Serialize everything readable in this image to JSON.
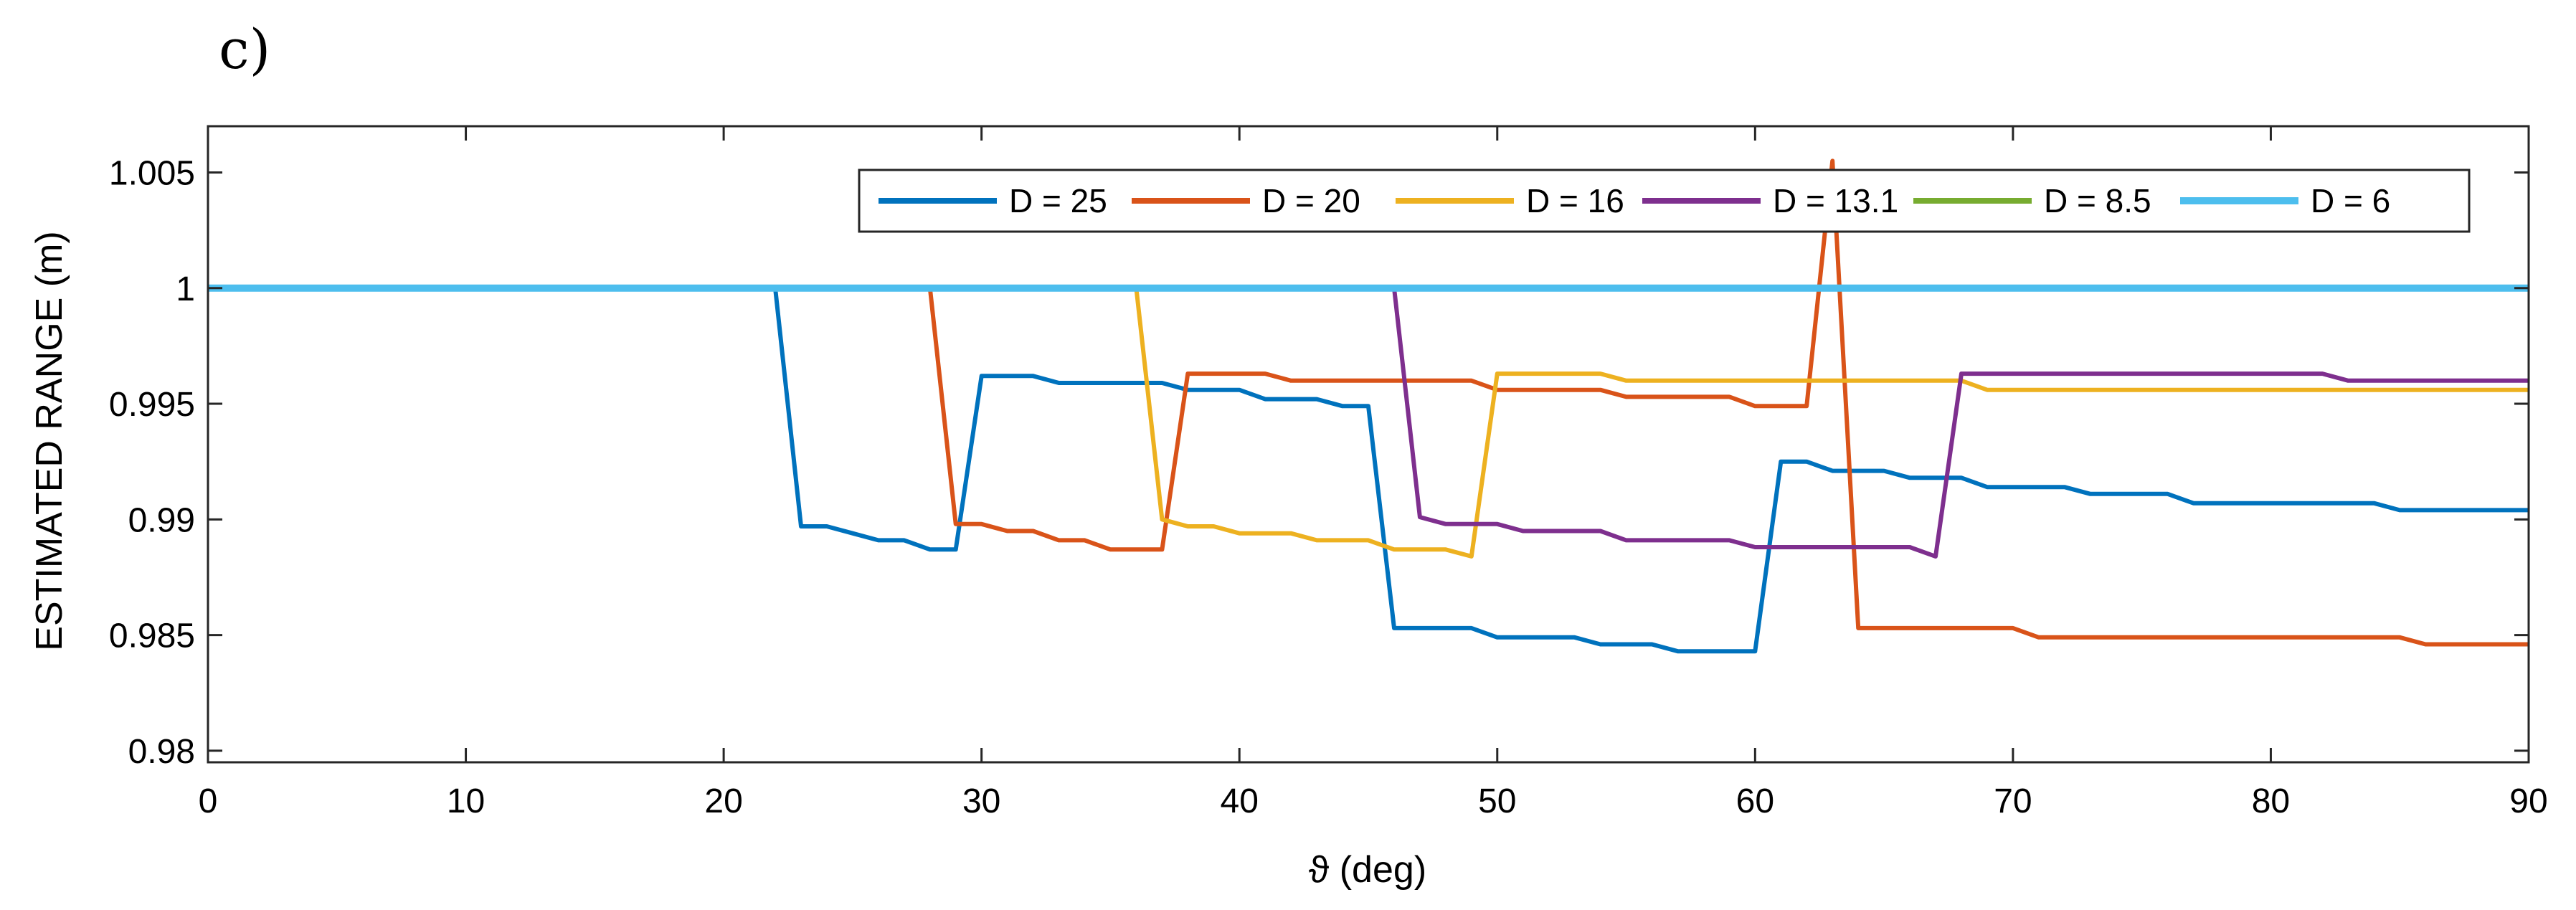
{
  "panel_label": "c)",
  "chart_data": {
    "type": "line",
    "title": "",
    "xlabel": "ϑ (deg)",
    "ylabel": "ESTIMATED RANGE (m)",
    "xlim": [
      0,
      90
    ],
    "ylim": [
      0.9795,
      1.007
    ],
    "xticks": [
      0,
      10,
      20,
      30,
      40,
      50,
      60,
      70,
      80,
      90
    ],
    "xtick_labels": [
      "0",
      "10",
      "20",
      "30",
      "40",
      "50",
      "60",
      "70",
      "80",
      "90"
    ],
    "yticks": [
      0.98,
      0.985,
      0.99,
      0.995,
      1,
      1.005
    ],
    "ytick_labels": [
      "0.98",
      "0.985",
      "0.99",
      "0.995",
      "1",
      "1.005"
    ],
    "grid": false,
    "legend_position": "top-right",
    "series": [
      {
        "name": "D = 25",
        "legend_label": "D = 25",
        "color": "#0072BD",
        "x": [
          0,
          22,
          23,
          24,
          25,
          26,
          27,
          28,
          29,
          30,
          31,
          32,
          33,
          34,
          35,
          36,
          37,
          38,
          39,
          40,
          41,
          42,
          43,
          44,
          45,
          46,
          47,
          48,
          49,
          50,
          51,
          52,
          53,
          54,
          55,
          56,
          57,
          58,
          59,
          60,
          61,
          62,
          63,
          64,
          65,
          66,
          67,
          68,
          69,
          70,
          71,
          72,
          73,
          74,
          75,
          76,
          77,
          78,
          79,
          80,
          81,
          82,
          83,
          84,
          85,
          86,
          87,
          88,
          89,
          90
        ],
        "y": [
          1,
          1,
          0.9897,
          0.9897,
          0.9894,
          0.9891,
          0.9891,
          0.9887,
          0.9887,
          0.9962,
          0.9962,
          0.9962,
          0.9959,
          0.9959,
          0.9959,
          0.9959,
          0.9959,
          0.9956,
          0.9956,
          0.9956,
          0.9952,
          0.9952,
          0.9952,
          0.9949,
          0.9949,
          0.9853,
          0.9853,
          0.9853,
          0.9853,
          0.9849,
          0.9849,
          0.9849,
          0.9849,
          0.9846,
          0.9846,
          0.9846,
          0.9843,
          0.9843,
          0.9843,
          0.9843,
          0.9925,
          0.9925,
          0.9921,
          0.9921,
          0.9921,
          0.9918,
          0.9918,
          0.9918,
          0.9914,
          0.9914,
          0.9914,
          0.9914,
          0.9911,
          0.9911,
          0.9911,
          0.9911,
          0.9907,
          0.9907,
          0.9907,
          0.9907,
          0.9907,
          0.9907,
          0.9907,
          0.9907,
          0.9904,
          0.9904,
          0.9904,
          0.9904,
          0.9904,
          0.9904
        ]
      },
      {
        "name": "D = 20",
        "legend_label": "D = 20",
        "color": "#D95319",
        "x": [
          0,
          28,
          29,
          30,
          31,
          32,
          33,
          34,
          35,
          36,
          37,
          38,
          39,
          40,
          41,
          42,
          43,
          44,
          45,
          46,
          47,
          48,
          49,
          50,
          51,
          52,
          53,
          54,
          55,
          56,
          57,
          58,
          59,
          60,
          61,
          62,
          63,
          64,
          65,
          66,
          67,
          68,
          69,
          70,
          71,
          72,
          80,
          84,
          85,
          86,
          87,
          88,
          89,
          90
        ],
        "y": [
          1,
          1,
          0.9898,
          0.9898,
          0.9895,
          0.9895,
          0.9891,
          0.9891,
          0.9887,
          0.9887,
          0.9887,
          0.9963,
          0.9963,
          0.9963,
          0.9963,
          0.996,
          0.996,
          0.996,
          0.996,
          0.996,
          0.996,
          0.996,
          0.996,
          0.9956,
          0.9956,
          0.9956,
          0.9956,
          0.9956,
          0.9953,
          0.9953,
          0.9953,
          0.9953,
          0.9953,
          0.9949,
          0.9949,
          0.9949,
          1.0055,
          0.9853,
          0.9853,
          0.9853,
          0.9853,
          0.9853,
          0.9853,
          0.9853,
          0.9849,
          0.9849,
          0.9849,
          0.9849,
          0.9849,
          0.9846,
          0.9846,
          0.9846,
          0.9846,
          0.9846
        ]
      },
      {
        "name": "D = 16",
        "legend_label": "D = 16",
        "color": "#EDB120",
        "x": [
          0,
          36,
          37,
          38,
          39,
          40,
          41,
          42,
          43,
          44,
          45,
          46,
          47,
          48,
          49,
          50,
          51,
          52,
          53,
          54,
          55,
          60,
          65,
          68,
          69,
          70,
          75,
          80,
          85,
          90
        ],
        "y": [
          1,
          1,
          0.99,
          0.9897,
          0.9897,
          0.9894,
          0.9894,
          0.9894,
          0.9891,
          0.9891,
          0.9891,
          0.9887,
          0.9887,
          0.9887,
          0.9884,
          0.9963,
          0.9963,
          0.9963,
          0.9963,
          0.9963,
          0.996,
          0.996,
          0.996,
          0.996,
          0.9956,
          0.9956,
          0.9956,
          0.9956,
          0.9956,
          0.9956
        ]
      },
      {
        "name": "D = 13.1",
        "legend_label": "D = 13.1",
        "color": "#7E2F8E",
        "x": [
          0,
          46,
          47,
          48,
          49,
          50,
          51,
          52,
          53,
          54,
          55,
          56,
          57,
          58,
          59,
          60,
          61,
          62,
          63,
          64,
          65,
          66,
          67,
          68,
          69,
          70,
          75,
          80,
          82,
          83,
          84,
          85,
          90
        ],
        "y": [
          1,
          1,
          0.9901,
          0.9898,
          0.9898,
          0.9898,
          0.9895,
          0.9895,
          0.9895,
          0.9895,
          0.9891,
          0.9891,
          0.9891,
          0.9891,
          0.9891,
          0.9888,
          0.9888,
          0.9888,
          0.9888,
          0.9888,
          0.9888,
          0.9888,
          0.9884,
          0.9963,
          0.9963,
          0.9963,
          0.9963,
          0.9963,
          0.9963,
          0.996,
          0.996,
          0.996,
          0.996
        ]
      },
      {
        "name": "D = 8.5",
        "legend_label": "D = 8.5",
        "color": "#77AC30",
        "x": [
          0,
          90
        ],
        "y": [
          1,
          1
        ]
      },
      {
        "name": "D = 6",
        "legend_label": "D = 6",
        "color": "#4DBEEE",
        "x": [
          0,
          90
        ],
        "y": [
          1,
          1
        ]
      }
    ]
  }
}
